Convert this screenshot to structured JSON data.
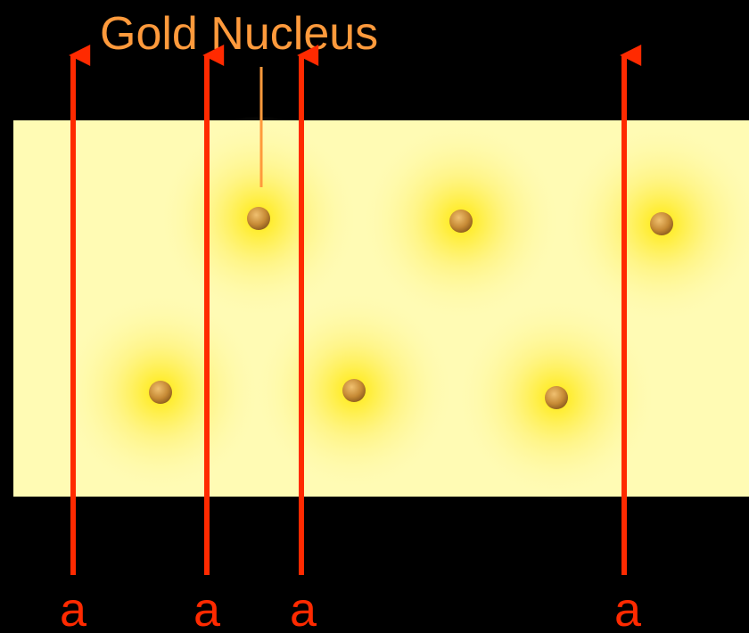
{
  "label": "Gold Nucleus",
  "particles": [
    {
      "label": "a"
    },
    {
      "label": "a"
    },
    {
      "label": "a"
    },
    {
      "label": "a"
    }
  ]
}
